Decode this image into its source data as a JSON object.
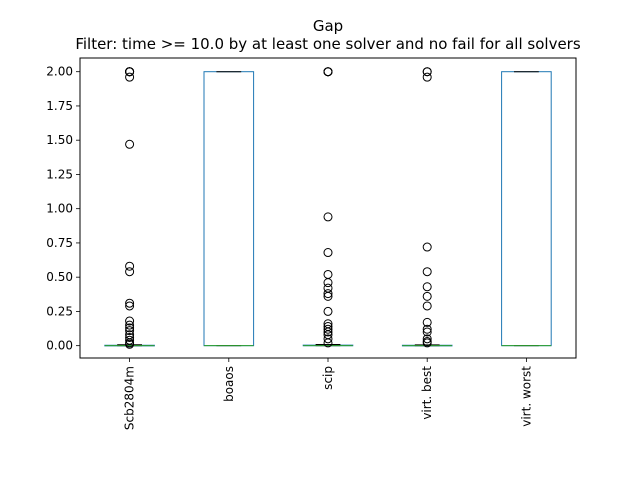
{
  "chart_data": {
    "type": "box",
    "title": "Gap",
    "subtitle": "Filter: time >= 10.0 by at least one solver and no fail for all solvers",
    "xlabel": "",
    "ylabel": "",
    "ylim": [
      -0.09,
      2.1
    ],
    "yticks": [
      "0.00",
      "0.25",
      "0.50",
      "0.75",
      "1.00",
      "1.25",
      "1.50",
      "1.75",
      "2.00"
    ],
    "ytick_values": [
      0,
      0.25,
      0.5,
      0.75,
      1.0,
      1.25,
      1.5,
      1.75,
      2.0
    ],
    "grid": false,
    "colors": {
      "box": "#1f77b4",
      "median": "#2ca02c",
      "whisker": "#1f77b4",
      "flier": "#000000"
    },
    "categories": [
      "Scb2804m",
      "boaos",
      "scip",
      "virt. best",
      "virt. worst"
    ],
    "series": [
      {
        "name": "Scb2804m",
        "q1": 0.0,
        "median": 0.0,
        "q3": 0.003,
        "whisker_low": 0.0,
        "whisker_high": 0.007,
        "outliers": [
          2.0,
          2.0,
          2.0,
          2.0,
          2.0,
          1.96,
          1.47,
          0.58,
          0.54,
          0.31,
          0.29,
          0.18,
          0.15,
          0.13,
          0.11,
          0.08,
          0.06,
          0.04,
          0.02,
          0.01
        ]
      },
      {
        "name": "boaos",
        "q1": 0.0,
        "median": 0.0,
        "q3": 2.0,
        "whisker_low": 0.0,
        "whisker_high": 2.0,
        "outliers": []
      },
      {
        "name": "scip",
        "q1": 0.0,
        "median": 0.0,
        "q3": 0.004,
        "whisker_low": 0.0,
        "whisker_high": 0.009,
        "outliers": [
          2.0,
          2.0,
          2.0,
          2.0,
          0.94,
          0.68,
          0.52,
          0.46,
          0.42,
          0.38,
          0.36,
          0.25,
          0.16,
          0.14,
          0.12,
          0.1,
          0.08,
          0.05,
          0.02
        ]
      },
      {
        "name": "virt. best",
        "q1": 0.0,
        "median": 0.0,
        "q3": 0.003,
        "whisker_low": 0.0,
        "whisker_high": 0.006,
        "outliers": [
          2.0,
          2.0,
          1.96,
          0.72,
          0.54,
          0.43,
          0.36,
          0.29,
          0.17,
          0.12,
          0.1,
          0.05,
          0.03,
          0.02
        ]
      },
      {
        "name": "virt. worst",
        "q1": 0.0,
        "median": 0.0,
        "q3": 2.0,
        "whisker_low": 0.0,
        "whisker_high": 2.0,
        "outliers": []
      }
    ]
  }
}
